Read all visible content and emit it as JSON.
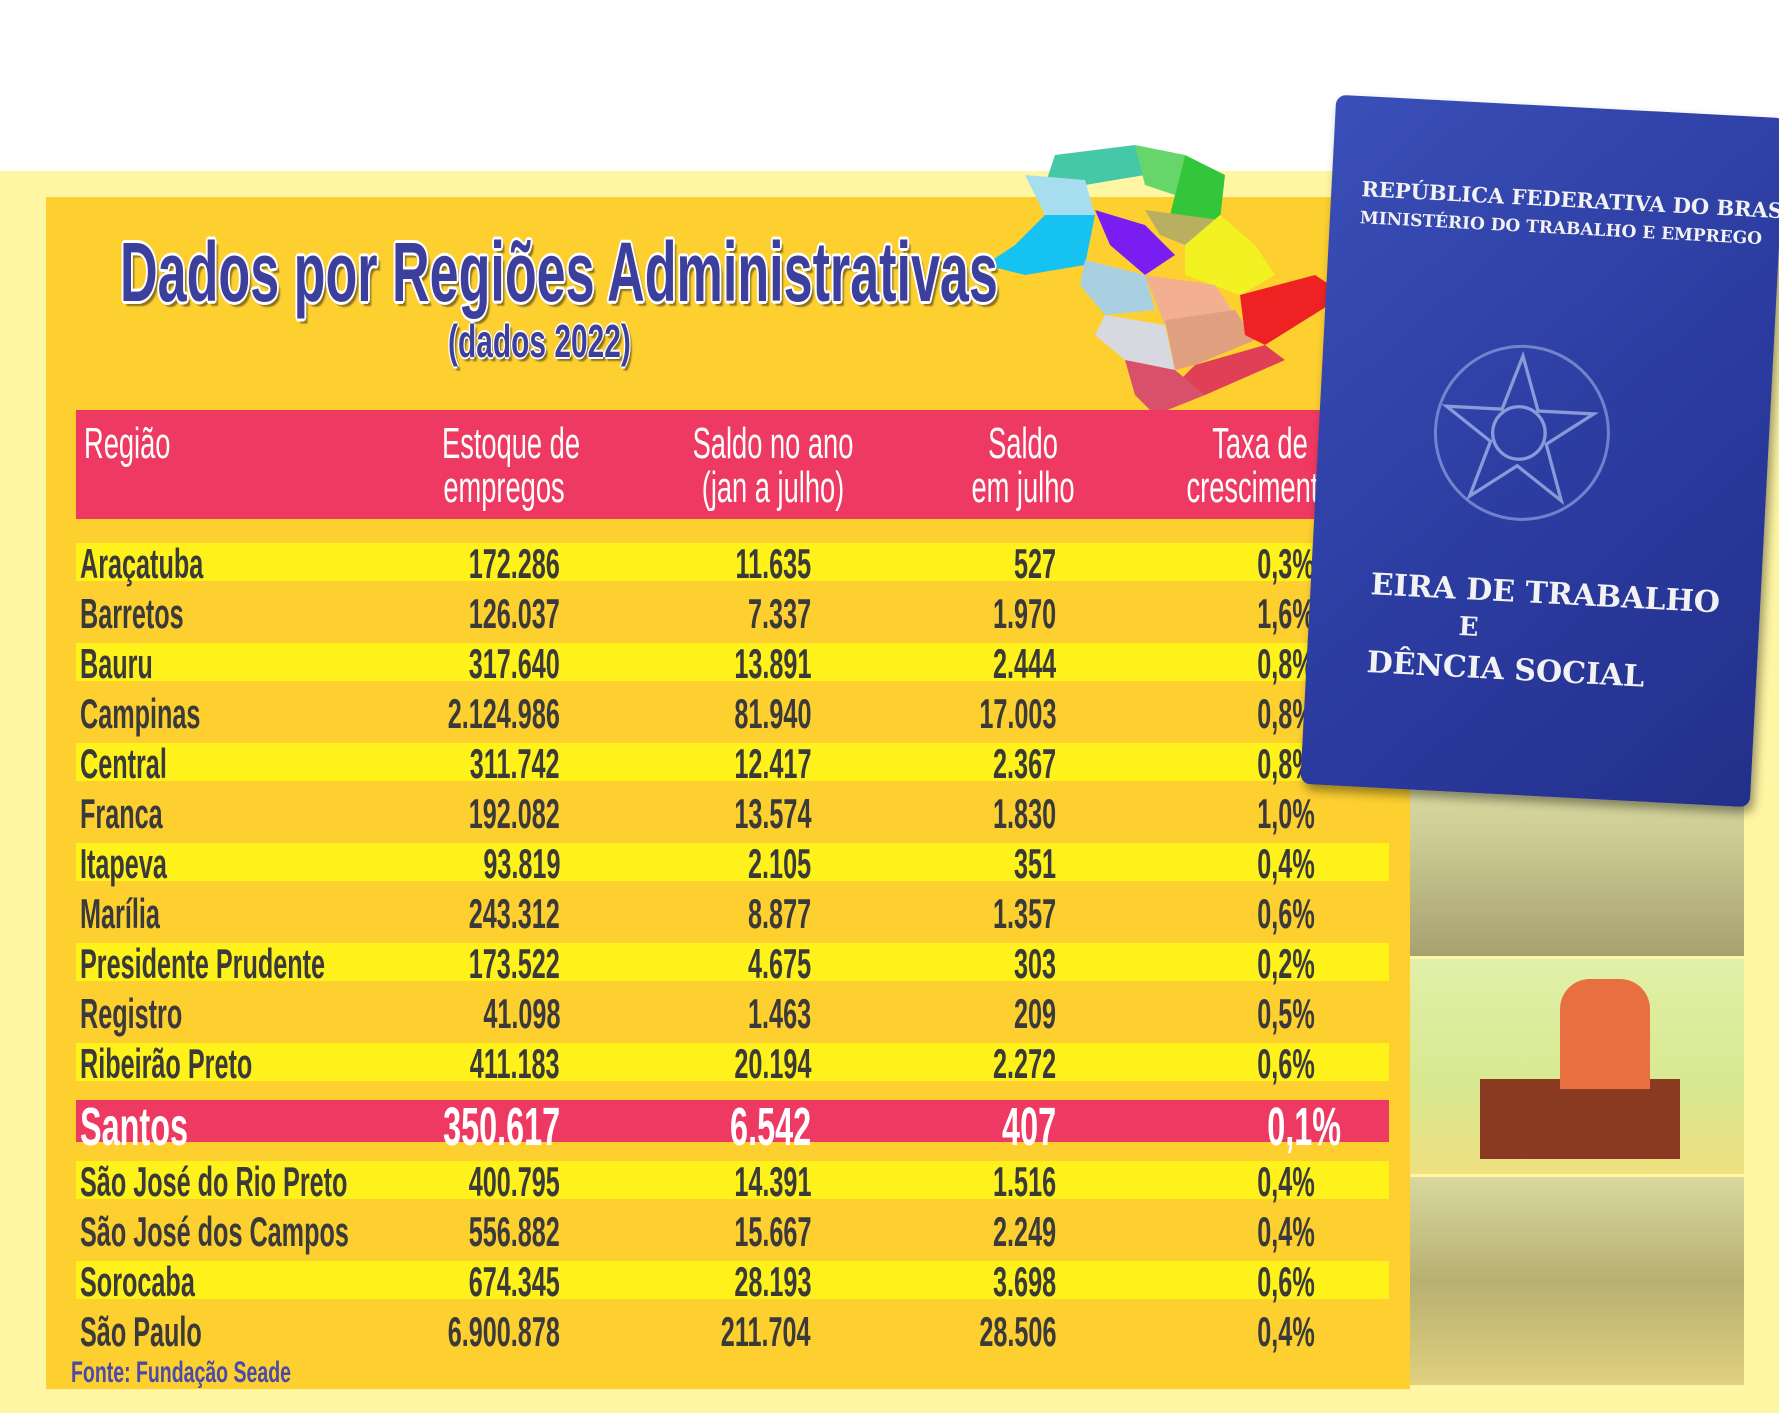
{
  "title": "Dados por Regiões Administrativas",
  "subtitle": "(dados 2022)",
  "columns": [
    {
      "line1": "Região",
      "line2": ""
    },
    {
      "line1": "Estoque de",
      "line2": "empregos"
    },
    {
      "line1": "Saldo no ano",
      "line2": "(jan a julho)"
    },
    {
      "line1": "Saldo",
      "line2": "em julho"
    },
    {
      "line1": "Taxa de",
      "line2": "crescimento"
    }
  ],
  "rows": [
    {
      "region": "Araçatuba",
      "stock": "172.286",
      "year_balance": "11.635",
      "july_balance": "527",
      "growth": "0,3%"
    },
    {
      "region": "Barretos",
      "stock": "126.037",
      "year_balance": "7.337",
      "july_balance": "1.970",
      "growth": "1,6%"
    },
    {
      "region": "Bauru",
      "stock": "317.640",
      "year_balance": "13.891",
      "july_balance": "2.444",
      "growth": "0,8%"
    },
    {
      "region": "Campinas",
      "stock": "2.124.986",
      "year_balance": "81.940",
      "july_balance": "17.003",
      "growth": "0,8%"
    },
    {
      "region": "Central",
      "stock": "311.742",
      "year_balance": "12.417",
      "july_balance": "2.367",
      "growth": "0,8%"
    },
    {
      "region": "Franca",
      "stock": "192.082",
      "year_balance": "13.574",
      "july_balance": "1.830",
      "growth": "1,0%"
    },
    {
      "region": "Itapeva",
      "stock": "93.819",
      "year_balance": "2.105",
      "july_balance": "351",
      "growth": "0,4%"
    },
    {
      "region": "Marília",
      "stock": "243.312",
      "year_balance": "8.877",
      "july_balance": "1.357",
      "growth": "0,6%"
    },
    {
      "region": "Presidente Prudente",
      "stock": "173.522",
      "year_balance": "4.675",
      "july_balance": "303",
      "growth": "0,2%"
    },
    {
      "region": "Registro",
      "stock": "41.098",
      "year_balance": "1.463",
      "july_balance": "209",
      "growth": "0,5%"
    },
    {
      "region": "Ribeirão Preto",
      "stock": "411.183",
      "year_balance": "20.194",
      "july_balance": "2.272",
      "growth": "0,6%"
    },
    {
      "region": "Santos",
      "stock": "350.617",
      "year_balance": "6.542",
      "july_balance": "407",
      "growth": "0,1%",
      "highlight": true
    },
    {
      "region": "São José do Rio Preto",
      "stock": "400.795",
      "year_balance": "14.391",
      "july_balance": "1.516",
      "growth": "0,4%"
    },
    {
      "region": "São José dos Campos",
      "stock": "556.882",
      "year_balance": "15.667",
      "july_balance": "2.249",
      "growth": "0,4%"
    },
    {
      "region": "Sorocaba",
      "stock": "674.345",
      "year_balance": "28.193",
      "july_balance": "3.698",
      "growth": "0,6%"
    },
    {
      "region": "São Paulo",
      "stock": "6.900.878",
      "year_balance": "211.704",
      "july_balance": "28.506",
      "growth": "0,4%"
    }
  ],
  "source": "Fonte: Fundação Seade",
  "work_card": {
    "line1": "REPÚBLICA FEDERATIVA DO BRASIL",
    "line2": "MINISTÉRIO DO TRABALHO E EMPREGO",
    "line3": "EIRA DE TRABALHO",
    "line4": "E",
    "line5": "DÊNCIA SOCIAL"
  },
  "colors": {
    "panel": "#fdd030",
    "stripe": "#fff21a",
    "header": "#ee3a62",
    "title": "#3d3f9c"
  }
}
